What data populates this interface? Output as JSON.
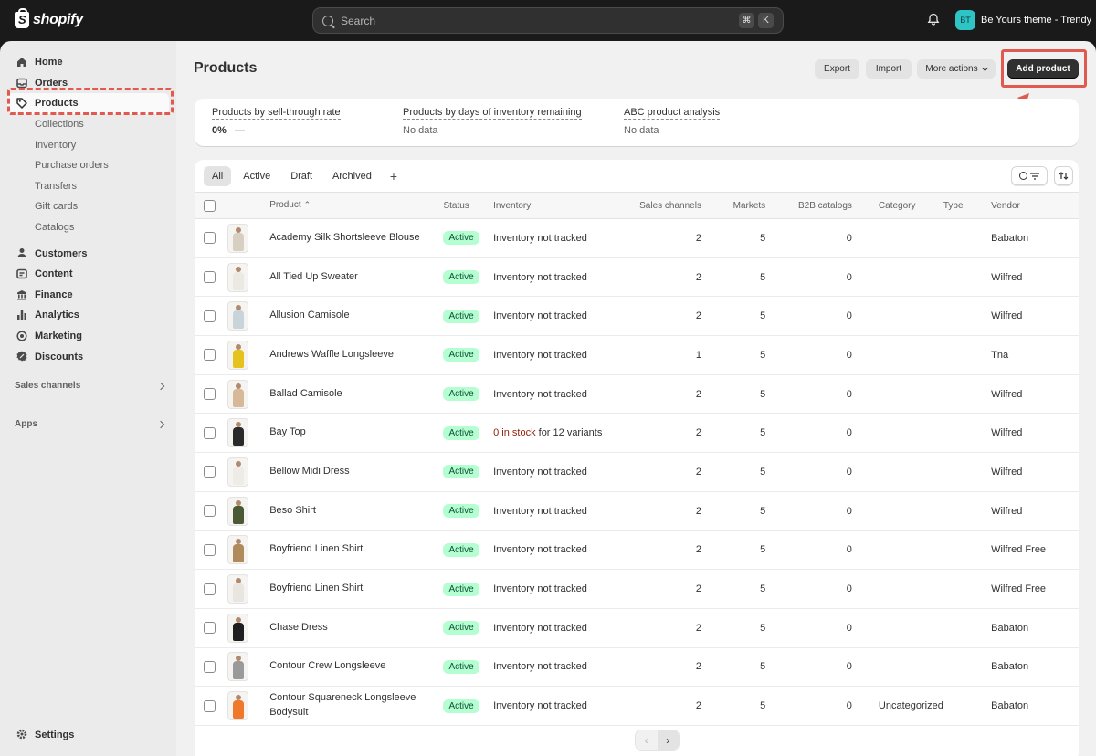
{
  "brand": {
    "name": "shopify"
  },
  "search": {
    "placeholder": "Search",
    "shortcut": [
      "⌘",
      "K"
    ]
  },
  "store": {
    "initials": "BT",
    "name": "Be Yours theme - Trendy",
    "avatar_color": "#2ec4c6"
  },
  "sidebar": {
    "items": [
      {
        "label": "Home",
        "icon": "home-icon"
      },
      {
        "label": "Orders",
        "icon": "inbox-icon"
      },
      {
        "label": "Products",
        "icon": "tag-icon",
        "active": true
      },
      {
        "label": "Collections",
        "sub": true
      },
      {
        "label": "Inventory",
        "sub": true
      },
      {
        "label": "Purchase orders",
        "sub": true
      },
      {
        "label": "Transfers",
        "sub": true
      },
      {
        "label": "Gift cards",
        "sub": true
      },
      {
        "label": "Catalogs",
        "sub": true
      },
      {
        "label": "Customers",
        "icon": "person-icon"
      },
      {
        "label": "Content",
        "icon": "content-icon"
      },
      {
        "label": "Finance",
        "icon": "bank-icon"
      },
      {
        "label": "Analytics",
        "icon": "chart-icon"
      },
      {
        "label": "Marketing",
        "icon": "target-icon"
      },
      {
        "label": "Discounts",
        "icon": "discount-icon"
      }
    ],
    "sections": [
      {
        "label": "Sales channels"
      },
      {
        "label": "Apps"
      }
    ],
    "settings_label": "Settings"
  },
  "header": {
    "title": "Products",
    "export_label": "Export",
    "import_label": "Import",
    "more_label": "More actions",
    "add_label": "Add product"
  },
  "analytics": [
    {
      "label": "Products by sell-through rate",
      "value": "0%",
      "trend": "—"
    },
    {
      "label": "Products by days of inventory remaining",
      "value": "No data"
    },
    {
      "label": "ABC product analysis",
      "value": "No data"
    }
  ],
  "tabs": [
    "All",
    "Active",
    "Draft",
    "Archived"
  ],
  "columns": {
    "product": "Product",
    "status": "Status",
    "inventory": "Inventory",
    "sales_channels": "Sales channels",
    "markets": "Markets",
    "b2b": "B2B catalogs",
    "category": "Category",
    "type": "Type",
    "vendor": "Vendor"
  },
  "rows": [
    {
      "name": "Academy Silk Shortsleeve Blouse",
      "status": "Active",
      "inventory": "Inventory not tracked",
      "channels": "2",
      "markets": "5",
      "b2b": "0",
      "category": "",
      "type": "",
      "vendor": "Babaton",
      "color": "#d8cfc3"
    },
    {
      "name": "All Tied Up Sweater",
      "status": "Active",
      "inventory": "Inventory not tracked",
      "channels": "2",
      "markets": "5",
      "b2b": "0",
      "category": "",
      "type": "",
      "vendor": "Wilfred",
      "color": "#ece8e2"
    },
    {
      "name": "Allusion Camisole",
      "status": "Active",
      "inventory": "Inventory not tracked",
      "channels": "2",
      "markets": "5",
      "b2b": "0",
      "category": "",
      "type": "",
      "vendor": "Wilfred",
      "color": "#c9d3da"
    },
    {
      "name": "Andrews Waffle Longsleeve",
      "status": "Active",
      "inventory": "Inventory not tracked",
      "channels": "1",
      "markets": "5",
      "b2b": "0",
      "category": "",
      "type": "",
      "vendor": "Tna",
      "color": "#e6c21f"
    },
    {
      "name": "Ballad Camisole",
      "status": "Active",
      "inventory": "Inventory not tracked",
      "channels": "2",
      "markets": "5",
      "b2b": "0",
      "category": "",
      "type": "",
      "vendor": "Wilfred",
      "color": "#d7b99a"
    },
    {
      "name": "Bay Top",
      "status": "Active",
      "inventory_warn": "0 in stock",
      "inventory_rest": " for 12 variants",
      "channels": "2",
      "markets": "5",
      "b2b": "0",
      "category": "",
      "type": "",
      "vendor": "Wilfred",
      "color": "#2a2a2a"
    },
    {
      "name": "Bellow Midi Dress",
      "status": "Active",
      "inventory": "Inventory not tracked",
      "channels": "2",
      "markets": "5",
      "b2b": "0",
      "category": "",
      "type": "",
      "vendor": "Wilfred",
      "color": "#efece8"
    },
    {
      "name": "Beso Shirt",
      "status": "Active",
      "inventory": "Inventory not tracked",
      "channels": "2",
      "markets": "5",
      "b2b": "0",
      "category": "",
      "type": "",
      "vendor": "Wilfred",
      "color": "#4b5a34"
    },
    {
      "name": "Boyfriend Linen Shirt",
      "status": "Active",
      "inventory": "Inventory not tracked",
      "channels": "2",
      "markets": "5",
      "b2b": "0",
      "category": "",
      "type": "",
      "vendor": "Wilfred Free",
      "color": "#b08a5a"
    },
    {
      "name": "Boyfriend Linen Shirt",
      "status": "Active",
      "inventory": "Inventory not tracked",
      "channels": "2",
      "markets": "5",
      "b2b": "0",
      "category": "",
      "type": "",
      "vendor": "Wilfred Free",
      "color": "#e9e6e1"
    },
    {
      "name": "Chase Dress",
      "status": "Active",
      "inventory": "Inventory not tracked",
      "channels": "2",
      "markets": "5",
      "b2b": "0",
      "category": "",
      "type": "",
      "vendor": "Babaton",
      "color": "#1f1f1f"
    },
    {
      "name": "Contour Crew Longsleeve",
      "status": "Active",
      "inventory": "Inventory not tracked",
      "channels": "2",
      "markets": "5",
      "b2b": "0",
      "category": "",
      "type": "",
      "vendor": "Babaton",
      "color": "#9a9a9a"
    },
    {
      "name": "Contour Squareneck Longsleeve Bodysuit",
      "status": "Active",
      "inventory": "Inventory not tracked",
      "channels": "2",
      "markets": "5",
      "b2b": "0",
      "category": "Uncategorized",
      "type": "",
      "vendor": "Babaton",
      "color": "#f0782a"
    }
  ],
  "pager": {
    "prev": "‹",
    "next": "›"
  }
}
